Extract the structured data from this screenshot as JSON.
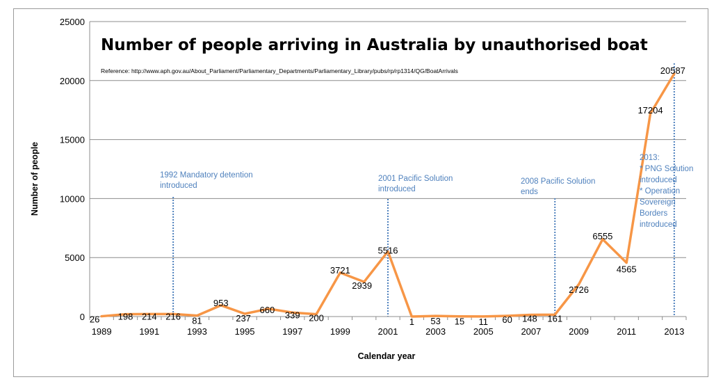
{
  "chart_data": {
    "type": "line",
    "title": "Number of people arriving in Australia by unauthorised boat",
    "subtitle": "Reference: http://www.aph.gov.au/About_Parliament/Parliamentary_Departments/Parliamentary_Library/pubs/rp/rp1314/QG/BoatArrivals",
    "xlabel": "Calendar year",
    "ylabel": "Number of people",
    "ylim": [
      0,
      25000
    ],
    "yticks": [
      0,
      5000,
      10000,
      15000,
      20000,
      25000
    ],
    "xlim": [
      1989,
      2013
    ],
    "xticks": [
      1989,
      1991,
      1993,
      1995,
      1997,
      1999,
      2001,
      2003,
      2005,
      2007,
      2009,
      2011,
      2013
    ],
    "grid": "horizontal",
    "series_color": "#f79646",
    "annotation_color": "#4f81bd",
    "series": [
      {
        "x": [
          1989,
          1990,
          1991,
          1992,
          1993,
          1994,
          1995,
          1996,
          1997,
          1998,
          1999,
          2000,
          2001,
          2002,
          2003,
          2004,
          2005,
          2006,
          2007,
          2008,
          2009,
          2010,
          2011,
          2012,
          2013
        ],
        "values": [
          26,
          198,
          214,
          216,
          81,
          953,
          237,
          660,
          339,
          200,
          3721,
          2939,
          5516,
          1,
          53,
          15,
          11,
          60,
          148,
          161,
          2726,
          6555,
          4565,
          17204,
          20587
        ]
      }
    ],
    "annotations": [
      {
        "x": 1992,
        "lines": [
          "1992 Mandatory detention",
          "introduced"
        ]
      },
      {
        "x": 2001,
        "lines": [
          "2001 Pacific Solution",
          "introduced"
        ]
      },
      {
        "x": 2008,
        "lines": [
          "2008 Pacific Solution",
          "ends"
        ]
      },
      {
        "x": 2013,
        "lines": [
          "2013:",
          "* PNG Solution",
          "introduced",
          "* Operation",
          "Sovereign",
          "Borders",
          "introduced"
        ]
      }
    ]
  }
}
